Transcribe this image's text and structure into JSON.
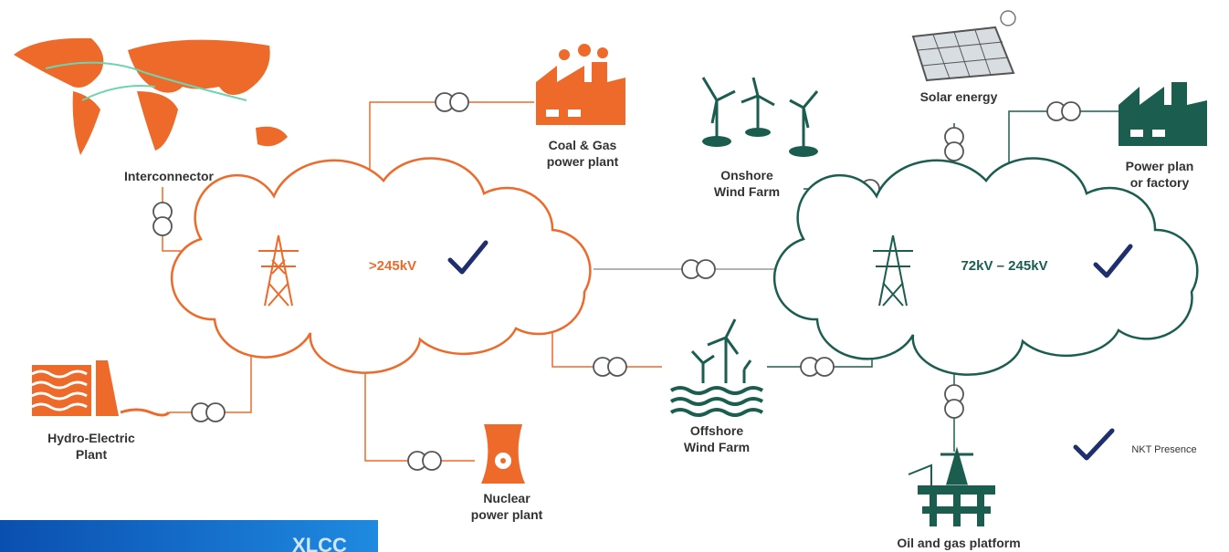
{
  "networks": [
    {
      "label": ">245kV"
    },
    {
      "label": "72kV – 245kV"
    }
  ],
  "nodes": [
    {
      "label": [
        "Interconnector"
      ]
    },
    {
      "label": [
        "Coal & Gas",
        "power plant"
      ]
    },
    {
      "label": [
        "Onshore",
        "Wind Farm"
      ]
    },
    {
      "label": [
        "Solar energy"
      ]
    },
    {
      "label": [
        "Power plan",
        "or factory"
      ]
    },
    {
      "label": [
        "Hydro-Electric",
        "Plant"
      ]
    },
    {
      "label": [
        "Offshore",
        "Wind Farm"
      ]
    },
    {
      "label": [
        "Nuclear",
        "power plant"
      ]
    },
    {
      "label": [
        "Oil and gas platform"
      ]
    }
  ],
  "legend": {
    "label": "NKT Presence"
  },
  "banner": {
    "label": "XLCC"
  }
}
